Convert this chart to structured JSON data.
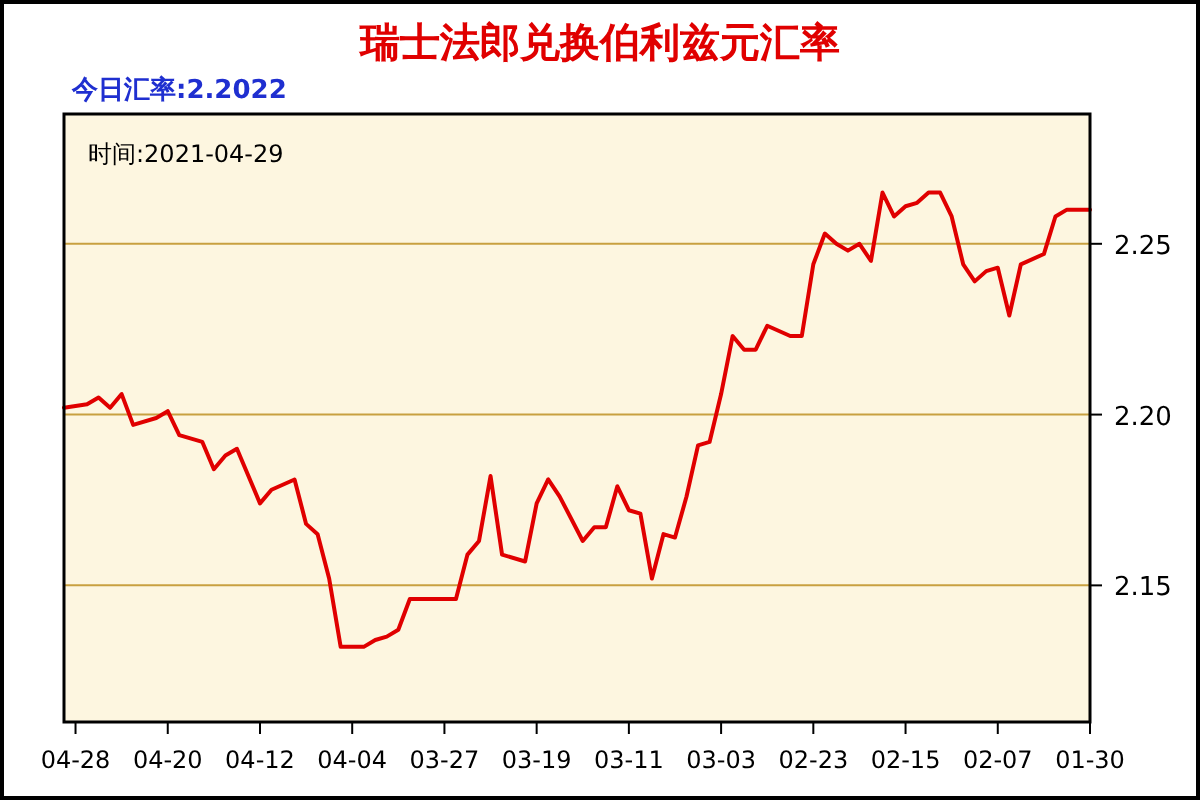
{
  "chart_data": {
    "type": "line",
    "title": "瑞士法郎兑换伯利兹元汇率",
    "subtitle": "今日汇率:2.2022",
    "annotations": [
      "时间:2021-04-29"
    ],
    "x": [
      "--01-30",
      "--02-01",
      "--02-02",
      "--02-03",
      "--02-05",
      "--02-06",
      "--02-07",
      "--02-08",
      "--02-09",
      "--02-10",
      "--02-11",
      "--02-12",
      "--02-13",
      "--02-14",
      "--02-15",
      "--02-16",
      "--02-17",
      "--02-18",
      "--02-19",
      "--02-20",
      "--02-21",
      "--02-22",
      "--02-23",
      "--02-24",
      "--02-25",
      "--02-27",
      "--02-28",
      "--03-01",
      "--03-02",
      "--03-03",
      "--03-04",
      "--03-05",
      "--03-06",
      "--03-07",
      "--03-08",
      "--03-09",
      "--03-10",
      "--03-11",
      "--03-12",
      "--03-13",
      "--03-14",
      "--03-15",
      "--03-17",
      "--03-18",
      "--03-19",
      "--03-20",
      "--03-22",
      "--03-23",
      "--03-24",
      "--03-25",
      "--03-26",
      "--03-28",
      "--03-30",
      "--03-31",
      "--04-01",
      "--04-02",
      "--04-03",
      "--04-04",
      "--04-05",
      "--04-06",
      "--04-07",
      "--04-08",
      "--04-09",
      "--04-11",
      "--04-12",
      "--04-14",
      "--04-15",
      "--04-16",
      "--04-17",
      "--04-19",
      "--04-20",
      "--04-21",
      "--04-23",
      "--04-24",
      "--04-25",
      "--04-26",
      "--04-27",
      "--04-29"
    ],
    "series": [
      {
        "color": "#e00000",
        "values": [
          2.26,
          2.26,
          2.258,
          2.247,
          2.244,
          2.229,
          2.243,
          2.242,
          2.239,
          2.244,
          2.258,
          2.265,
          2.265,
          2.262,
          2.261,
          2.258,
          2.265,
          2.245,
          2.25,
          2.248,
          2.25,
          2.253,
          2.244,
          2.223,
          2.223,
          2.226,
          2.219,
          2.219,
          2.223,
          2.206,
          2.192,
          2.191,
          2.176,
          2.164,
          2.165,
          2.152,
          2.171,
          2.172,
          2.179,
          2.167,
          2.167,
          2.163,
          2.176,
          2.181,
          2.174,
          2.157,
          2.159,
          2.182,
          2.163,
          2.159,
          2.146,
          2.146,
          2.146,
          2.137,
          2.135,
          2.134,
          2.132,
          2.132,
          2.132,
          2.152,
          2.165,
          2.168,
          2.181,
          2.178,
          2.174,
          2.19,
          2.188,
          2.184,
          2.192,
          2.194,
          2.201,
          2.199,
          2.197,
          2.206,
          2.202,
          2.205,
          2.203,
          2.202
        ]
      }
    ],
    "xlim": [
      "--04-29",
      "--01-30"
    ],
    "xticks": [
      {
        "value": "--04-28",
        "label": "04-28"
      },
      {
        "value": "--04-20",
        "label": "04-20"
      },
      {
        "value": "--04-12",
        "label": "04-12"
      },
      {
        "value": "--04-04",
        "label": "04-04"
      },
      {
        "value": "--03-27",
        "label": "03-27"
      },
      {
        "value": "--03-19",
        "label": "03-19"
      },
      {
        "value": "--03-11",
        "label": "03-11"
      },
      {
        "value": "--03-03",
        "label": "03-03"
      },
      {
        "value": "--02-23",
        "label": "02-23"
      },
      {
        "value": "--02-15",
        "label": "02-15"
      },
      {
        "value": "--02-07",
        "label": "02-07"
      },
      {
        "value": "--01-30",
        "label": "01-30"
      }
    ],
    "ylim": [
      2.11,
      2.288
    ],
    "yticks": [
      {
        "value": 2.15,
        "label": "2.15"
      },
      {
        "value": 2.2,
        "label": "2.20"
      },
      {
        "value": 2.25,
        "label": "2.25"
      }
    ],
    "grid": "y"
  }
}
